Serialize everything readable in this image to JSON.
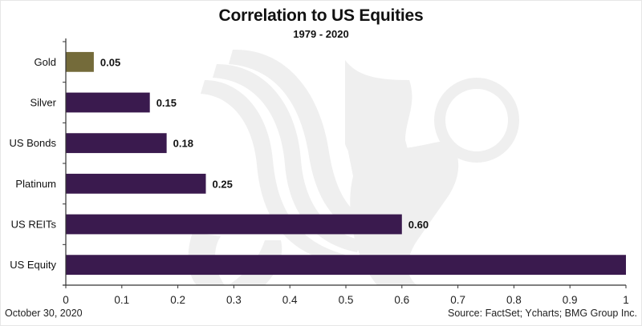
{
  "colors": {
    "gold_bar": "#746b3a",
    "purple_bar": "#3a1a4e",
    "axis": "#333333",
    "watermark": "#efefef"
  },
  "watermark_icon": "griffin-logo",
  "footer": {
    "date": "October 30, 2020",
    "source": "Source: FactSet; Ycharts; BMG Group Inc."
  },
  "chart_data": {
    "type": "bar",
    "orientation": "horizontal",
    "title": "Correlation to US Equities",
    "subtitle": "1979 - 2020",
    "xlabel": "",
    "ylabel": "",
    "xlim": [
      0,
      1
    ],
    "x_ticks": [
      "0",
      "0.1",
      "0.2",
      "0.3",
      "0.4",
      "0.5",
      "0.6",
      "0.7",
      "0.8",
      "0.9",
      "1"
    ],
    "grid": false,
    "legend": "none",
    "categories": [
      "Gold",
      "Silver",
      "US Bonds",
      "Platinum",
      "US REITs",
      "US Equity"
    ],
    "values": [
      0.05,
      0.15,
      0.18,
      0.25,
      0.6,
      1.0
    ],
    "data_labels": [
      "0.05",
      "0.15",
      "0.18",
      "0.25",
      "0.60",
      ""
    ],
    "bar_color_keys": [
      "gold",
      "purple",
      "purple",
      "purple",
      "purple",
      "purple"
    ]
  }
}
